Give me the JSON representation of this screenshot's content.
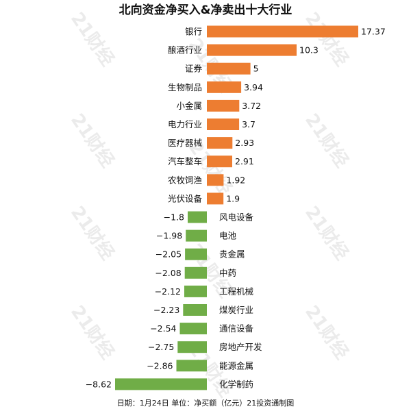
{
  "chart_data": {
    "type": "bar",
    "orientation": "horizontal",
    "title": "北向资金净买入&净卖出十大行业",
    "categories": [
      "银行",
      "酿酒行业",
      "证券",
      "生物制品",
      "小金属",
      "电力行业",
      "医疗器械",
      "汽车整车",
      "农牧饲渔",
      "光伏设备",
      "风电设备",
      "电池",
      "贵金属",
      "中药",
      "工程机械",
      "煤炭行业",
      "通信设备",
      "房地产开发",
      "能源金属",
      "化学制药"
    ],
    "values": [
      17.37,
      10.3,
      5,
      3.94,
      3.72,
      3.7,
      2.93,
      2.91,
      1.92,
      1.9,
      -1.8,
      -1.98,
      -2.05,
      -2.08,
      -2.12,
      -2.23,
      -2.54,
      -2.75,
      -2.86,
      -8.62
    ],
    "value_labels": [
      "17.37",
      "10.3",
      "5",
      "3.94",
      "3.72",
      "3.7",
      "2.93",
      "2.91",
      "1.92",
      "1.9",
      "−1.8",
      "−1.98",
      "−2.05",
      "−2.08",
      "−2.12",
      "−2.23",
      "−2.54",
      "−2.75",
      "−2.86",
      "−8.62"
    ],
    "colors": {
      "positive": "#ed7d31",
      "negative": "#70ad47"
    },
    "footer": "日期：1月24日 单位：净买额（亿元）21投资通制图",
    "watermark": "21财经",
    "grid": false,
    "legend": "none"
  }
}
